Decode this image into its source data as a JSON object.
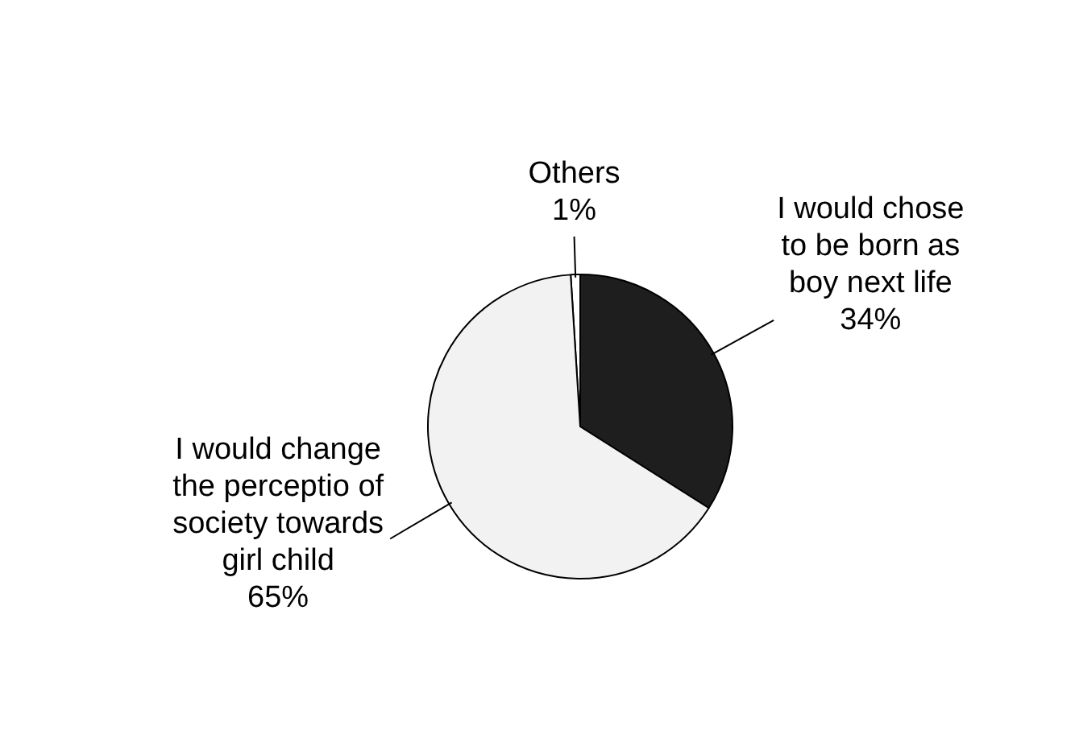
{
  "chart_data": {
    "type": "pie",
    "categories": [
      "Others",
      "I would chose to be born as boy next life",
      "I would change the perceptio of society towards girl child"
    ],
    "values": [
      1,
      34,
      65
    ],
    "colors": [
      "#ffffff",
      "#1e1e1e",
      "#f2f2f2"
    ],
    "value_labels": [
      "1%",
      "34%",
      "65%"
    ],
    "legend": false
  }
}
